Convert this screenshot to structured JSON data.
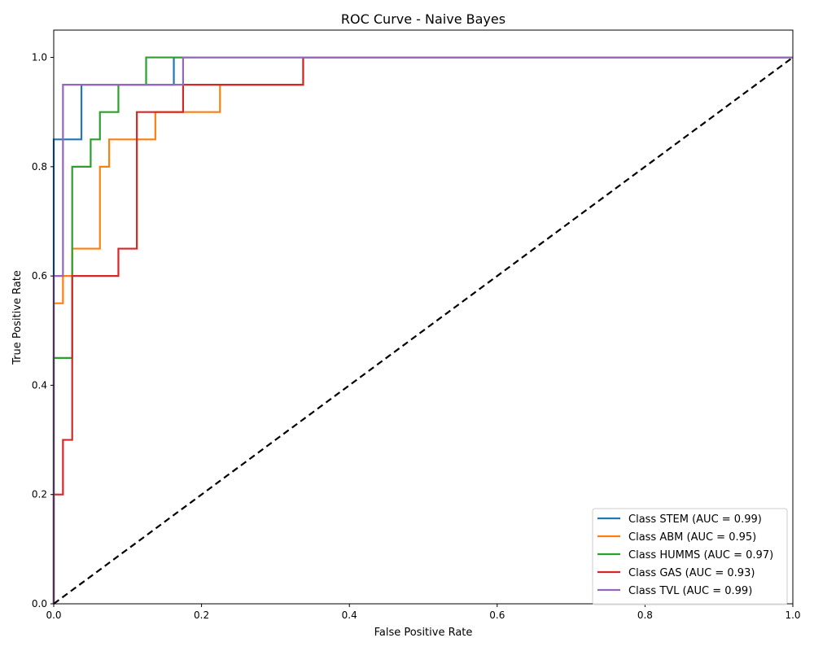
{
  "chart_data": {
    "type": "line",
    "title": "ROC Curve - Naive Bayes",
    "xlabel": "False Positive Rate",
    "ylabel": "True Positive Rate",
    "xlim": [
      0.0,
      1.0
    ],
    "ylim": [
      0.0,
      1.05
    ],
    "xticks": [
      "0.0",
      "0.2",
      "0.4",
      "0.6",
      "0.8",
      "1.0"
    ],
    "yticks": [
      "0.0",
      "0.2",
      "0.4",
      "0.6",
      "0.8",
      "1.0"
    ],
    "grid": false,
    "legend_position": "lower-right",
    "series": [
      {
        "name": "Class STEM (AUC = 0.99)",
        "color": "#1f77b4",
        "x": [
          0.0,
          0.0,
          0.0375,
          0.0375,
          0.1625,
          0.1625,
          1.0
        ],
        "y": [
          0.0,
          0.85,
          0.85,
          0.95,
          0.95,
          1.0,
          1.0
        ]
      },
      {
        "name": "Class ABM (AUC = 0.95)",
        "color": "#ff7f0e",
        "x": [
          0.0,
          0.0,
          0.0125,
          0.0125,
          0.025,
          0.025,
          0.0625,
          0.0625,
          0.075,
          0.075,
          0.1375,
          0.1375,
          0.175,
          0.175,
          0.225,
          0.225,
          0.3375,
          0.3375,
          1.0
        ],
        "y": [
          0.0,
          0.55,
          0.55,
          0.6,
          0.6,
          0.65,
          0.65,
          0.8,
          0.8,
          0.85,
          0.85,
          0.9,
          0.9,
          0.9,
          0.9,
          0.95,
          0.95,
          1.0,
          1.0
        ]
      },
      {
        "name": "Class HUMMS (AUC = 0.97)",
        "color": "#2ca02c",
        "x": [
          0.0,
          0.0,
          0.025,
          0.025,
          0.05,
          0.05,
          0.0625,
          0.0625,
          0.0875,
          0.0875,
          0.125,
          0.125,
          1.0
        ],
        "y": [
          0.0,
          0.45,
          0.45,
          0.8,
          0.8,
          0.85,
          0.85,
          0.9,
          0.9,
          0.95,
          0.95,
          1.0,
          1.0
        ]
      },
      {
        "name": "Class GAS (AUC = 0.93)",
        "color": "#d62728",
        "x": [
          0.0,
          0.0,
          0.0125,
          0.0125,
          0.025,
          0.025,
          0.0875,
          0.0875,
          0.1125,
          0.1125,
          0.175,
          0.175,
          0.3375,
          0.3375,
          1.0
        ],
        "y": [
          0.0,
          0.2,
          0.2,
          0.3,
          0.3,
          0.6,
          0.6,
          0.65,
          0.65,
          0.9,
          0.9,
          0.95,
          0.95,
          1.0,
          1.0
        ]
      },
      {
        "name": "Class TVL (AUC = 0.99)",
        "color": "#9467bd",
        "x": [
          0.0,
          0.0,
          0.0125,
          0.0125,
          0.175,
          0.175,
          1.0
        ],
        "y": [
          0.0,
          0.6,
          0.6,
          0.95,
          0.95,
          1.0,
          1.0
        ]
      }
    ],
    "reference_line": {
      "x": [
        0.0,
        1.0
      ],
      "y": [
        0.0,
        1.0
      ],
      "color": "#000000",
      "style": "dashed"
    }
  }
}
